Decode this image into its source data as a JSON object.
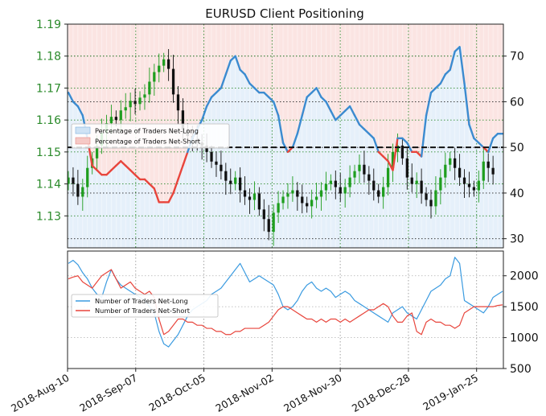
{
  "chart_data": [
    {
      "type": "line",
      "title": "EURUSD Client Positioning",
      "x_ticks": [
        "2018-Aug-10",
        "2018-Sep-07",
        "2018-Oct-05",
        "2018-Nov-02",
        "2018-Nov-30",
        "2018-Dec-28",
        "2019-Jan-25"
      ],
      "x_range": [
        "2018-Aug-10",
        "2019-Feb-05"
      ],
      "left_axis": {
        "ticks": [
          "1.13",
          "1.14",
          "1.15",
          "1.16",
          "1.17",
          "1.18",
          "1.19"
        ],
        "ylim": [
          1.12,
          1.19
        ],
        "color": "#2a8a2a"
      },
      "right_axis": {
        "ticks": [
          "30",
          "40",
          "50",
          "60",
          "70"
        ],
        "ylim": [
          28,
          77
        ]
      },
      "reference_line": 50,
      "legend": {
        "placement": "center-left",
        "entries": [
          "Percentage of Traders Net-Long",
          "Percentage of Traders Net-Short"
        ]
      },
      "price_series": {
        "name": "EURUSD",
        "close": [
          1.142,
          1.14,
          1.136,
          1.139,
          1.145,
          1.148,
          1.152,
          1.156,
          1.159,
          1.161,
          1.16,
          1.163,
          1.164,
          1.166,
          1.165,
          1.167,
          1.168,
          1.172,
          1.175,
          1.177,
          1.179,
          1.176,
          1.168,
          1.163,
          1.157,
          1.155,
          1.154,
          1.153,
          1.152,
          1.15,
          1.147,
          1.146,
          1.144,
          1.141,
          1.14,
          1.142,
          1.138,
          1.136,
          1.135,
          1.137,
          1.132,
          1.129,
          1.125,
          1.131,
          1.134,
          1.136,
          1.137,
          1.138,
          1.136,
          1.134,
          1.133,
          1.135,
          1.136,
          1.138,
          1.14,
          1.141,
          1.139,
          1.137,
          1.139,
          1.142,
          1.144,
          1.146,
          1.143,
          1.141,
          1.138,
          1.136,
          1.139,
          1.145,
          1.15,
          1.152,
          1.148,
          1.142,
          1.14,
          1.141,
          1.137,
          1.135,
          1.133,
          1.138,
          1.142,
          1.146,
          1.148,
          1.145,
          1.142,
          1.14,
          1.139,
          1.138,
          1.141,
          1.147,
          1.145,
          1.143
        ]
      },
      "series": [
        {
          "name": "Percentage of Traders Net-Long",
          "color": "#3b8bd0",
          "values": [
            62,
            60,
            59,
            57,
            52,
            46,
            45,
            44,
            44,
            45,
            46,
            47,
            46,
            45,
            44,
            43,
            43,
            42,
            41,
            38,
            38,
            38,
            40,
            43,
            46,
            49,
            52,
            54,
            56,
            59,
            61,
            62,
            63,
            66,
            69,
            70,
            67,
            66,
            64,
            63,
            62,
            62,
            61,
            60,
            57,
            51,
            49,
            50,
            53,
            57,
            61,
            62,
            63,
            61,
            60,
            58,
            56,
            57,
            58,
            59,
            57,
            55,
            54,
            53,
            52,
            49,
            48,
            47,
            45,
            52,
            52,
            51,
            49,
            49,
            48,
            57,
            62,
            63,
            64,
            66,
            67,
            71,
            72,
            64,
            55,
            52,
            51,
            50,
            49,
            52,
            53,
            53
          ]
        },
        {
          "name": "Percentage of Traders Net-Short",
          "color": "#e8453c",
          "values": [
            38,
            40,
            41,
            43,
            48,
            54,
            55,
            56,
            56,
            55,
            54,
            53,
            54,
            55,
            56,
            57,
            57,
            58,
            59,
            62,
            62,
            62,
            60,
            57,
            54,
            51,
            48,
            46,
            44,
            41,
            39,
            38,
            37,
            34,
            31,
            30,
            33,
            34,
            36,
            37,
            38,
            38,
            39,
            40,
            43,
            49,
            51,
            50,
            47,
            43,
            39,
            38,
            37,
            39,
            40,
            42,
            44,
            43,
            42,
            41,
            43,
            45,
            46,
            47,
            48,
            51,
            52,
            53,
            55,
            48,
            48,
            49,
            51,
            51,
            52,
            43,
            38,
            37,
            36,
            34,
            33,
            29,
            28,
            36,
            45,
            48,
            49,
            50,
            51,
            48,
            47,
            47
          ]
        }
      ]
    },
    {
      "type": "line",
      "right_axis": {
        "ticks": [
          "500",
          "1000",
          "1500",
          "2000"
        ],
        "ylim": [
          500,
          2400
        ]
      },
      "legend": {
        "placement": "center-left",
        "entries": [
          "Number of Traders Net-Long",
          "Number of Traders Net-Short"
        ]
      },
      "series": [
        {
          "name": "Number of Traders Net-Long",
          "color": "#3b9be0",
          "values": [
            2200,
            2250,
            2180,
            2050,
            1950,
            1800,
            1700,
            1650,
            1900,
            2100,
            1950,
            1850,
            1800,
            1750,
            1700,
            1650,
            1600,
            1500,
            1400,
            1100,
            900,
            850,
            950,
            1050,
            1200,
            1350,
            1450,
            1500,
            1550,
            1600,
            1700,
            1750,
            1800,
            1900,
            2000,
            2100,
            2200,
            2050,
            1900,
            1950,
            2000,
            1950,
            1900,
            1850,
            1700,
            1500,
            1450,
            1500,
            1600,
            1750,
            1850,
            1900,
            1800,
            1750,
            1800,
            1750,
            1650,
            1700,
            1750,
            1700,
            1600,
            1550,
            1500,
            1450,
            1400,
            1350,
            1300,
            1250,
            1400,
            1450,
            1500,
            1400,
            1350,
            1300,
            1450,
            1600,
            1750,
            1800,
            1850,
            1950,
            2000,
            2300,
            2200,
            1600,
            1550,
            1500,
            1450,
            1400,
            1500,
            1650,
            1700,
            1750
          ]
        },
        {
          "name": "Number of Traders Net-Short",
          "color": "#e8453c",
          "values": [
            1950,
            1980,
            2000,
            1900,
            1850,
            1800,
            1900,
            2000,
            2050,
            2100,
            1950,
            1800,
            1850,
            1900,
            1800,
            1750,
            1700,
            1750,
            1650,
            1300,
            1050,
            1100,
            1200,
            1300,
            1300,
            1250,
            1250,
            1200,
            1200,
            1150,
            1150,
            1100,
            1100,
            1050,
            1050,
            1100,
            1100,
            1150,
            1150,
            1150,
            1150,
            1200,
            1250,
            1350,
            1450,
            1500,
            1500,
            1450,
            1400,
            1350,
            1300,
            1300,
            1250,
            1300,
            1250,
            1300,
            1300,
            1250,
            1300,
            1250,
            1300,
            1350,
            1400,
            1450,
            1450,
            1500,
            1550,
            1500,
            1350,
            1250,
            1250,
            1350,
            1400,
            1100,
            1050,
            1250,
            1300,
            1250,
            1250,
            1200,
            1200,
            1150,
            1200,
            1400,
            1450,
            1500,
            1500,
            1500,
            1500,
            1500,
            1520,
            1530
          ]
        }
      ]
    }
  ]
}
